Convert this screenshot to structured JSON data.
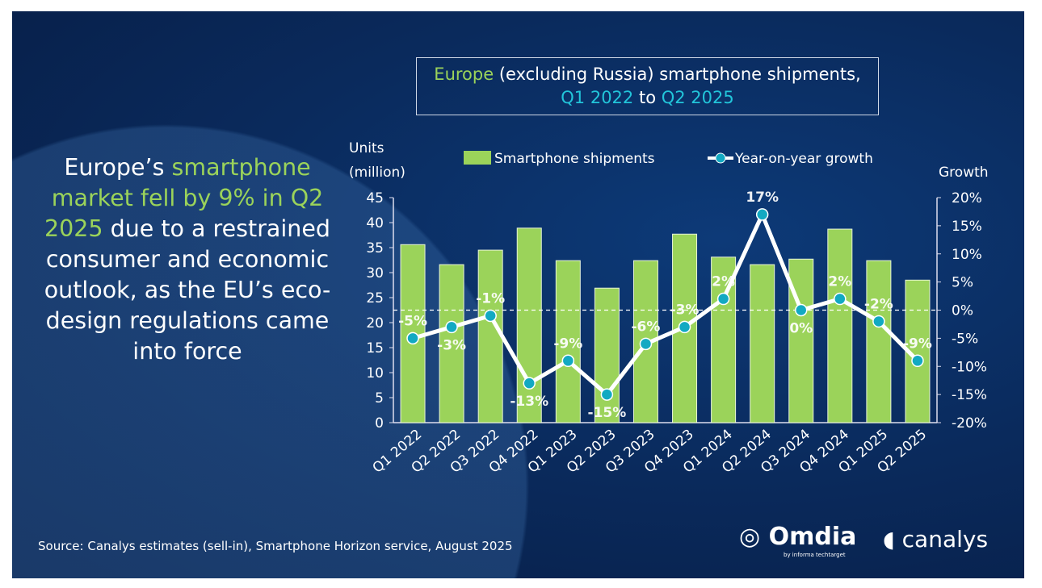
{
  "title": {
    "part1": "Europe",
    "part2": " (excluding Russia) smartphone shipments,",
    "part3": "Q1 2022",
    "part4": " to ",
    "part5": "Q2 2025"
  },
  "headline": {
    "a": "Europe’s ",
    "b": "smartphone market fell by 9% in Q2 2025",
    "c": " due to a restrained consumer and economic outlook, as the EU’s eco-design regulations came into force"
  },
  "source": "Source: Canalys estimates (sell-in), Smartphone Horizon service, August 2025",
  "logos": {
    "omdia": "Omdia",
    "omdia_sub": "by informa techtarget",
    "canalys": "canalys"
  },
  "colors": {
    "bar": "#9bd35a",
    "line": "#ffffff",
    "marker": "#12a9c2",
    "background": "#0a2a5c"
  },
  "chart_data": {
    "type": "bar+line",
    "title": "Europe (excluding Russia) smartphone shipments, Q1 2022 to Q2 2025",
    "ylabel": "Units (million)",
    "y2label": "Growth",
    "ylim": [
      0,
      45
    ],
    "yticks": [
      "0",
      "5",
      "10",
      "15",
      "20",
      "25",
      "30",
      "35",
      "40",
      "45"
    ],
    "y2lim": [
      -20,
      20
    ],
    "y2ticks": [
      "-20%",
      "-15%",
      "-10%",
      "-5%",
      "0%",
      "5%",
      "10%",
      "15%",
      "20%"
    ],
    "legend": {
      "placement": "top",
      "bars": "Smartphone shipments",
      "line": "Year-on-year growth"
    },
    "categories": [
      "Q1 2022",
      "Q2 2022",
      "Q3 2022",
      "Q4 2022",
      "Q1 2023",
      "Q2 2023",
      "Q3 2023",
      "Q4 2023",
      "Q1 2024",
      "Q2 2024",
      "Q3 2024",
      "Q4 2024",
      "Q1 2025",
      "Q2 2025"
    ],
    "series": [
      {
        "name": "Smartphone shipments",
        "axis": "left",
        "values": [
          35.6,
          31.6,
          34.5,
          38.9,
          32.4,
          26.9,
          32.4,
          37.7,
          33.1,
          31.6,
          32.7,
          38.7,
          32.4,
          28.5
        ]
      },
      {
        "name": "Year-on-year growth",
        "axis": "right",
        "values": [
          -5,
          -3,
          -1,
          -13,
          -9,
          -15,
          -6,
          -3,
          2,
          17,
          0,
          2,
          -2,
          -9
        ],
        "labels": [
          "-5%",
          "-3%",
          "-1%",
          "-13%",
          "-9%",
          "-15%",
          "-6%",
          "-3%",
          "2%",
          "17%",
          "0%",
          "2%",
          "-2%",
          "-9%"
        ]
      }
    ],
    "zero_growth_line": "dashed"
  }
}
